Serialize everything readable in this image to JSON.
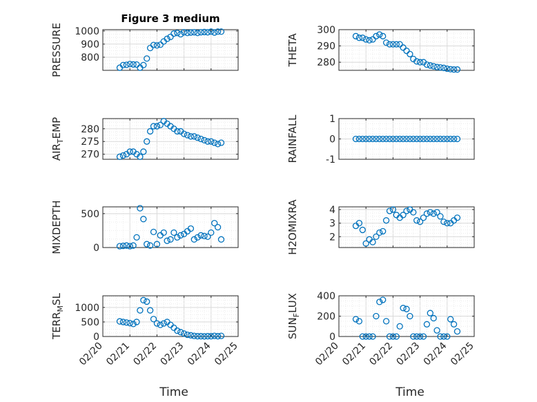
{
  "chart_data": [
    {
      "type": "scatter",
      "title": "Figure 3 medium",
      "ylabel": "PRESSURE",
      "ylim": [
        700,
        1010
      ],
      "yticks": [
        800,
        900,
        1000
      ],
      "xlim": [
        "02/20",
        "02/25"
      ],
      "grid": true,
      "x": [
        "02/20 15:00",
        "02/20 18:00",
        "02/20 21:00",
        "02/21 00:00",
        "02/21 03:00",
        "02/21 06:00",
        "02/21 09:00",
        "02/21 12:00",
        "02/21 15:00",
        "02/21 18:00",
        "02/21 21:00",
        "02/22 00:00",
        "02/22 03:00",
        "02/22 06:00",
        "02/22 09:00",
        "02/22 12:00",
        "02/22 15:00",
        "02/22 18:00",
        "02/22 21:00",
        "02/23 00:00",
        "02/23 03:00",
        "02/23 06:00",
        "02/23 09:00",
        "02/23 12:00",
        "02/23 15:00",
        "02/23 18:00",
        "02/23 21:00",
        "02/24 00:00",
        "02/24 03:00",
        "02/24 06:00",
        "02/24 09:00"
      ],
      "y": [
        720,
        740,
        742,
        748,
        745,
        744,
        720,
        740,
        790,
        870,
        893,
        890,
        895,
        920,
        940,
        955,
        980,
        985,
        975,
        990,
        985,
        988,
        990,
        985,
        990,
        992,
        990,
        995,
        988,
        995,
        995
      ]
    },
    {
      "type": "scatter",
      "ylabel": "THETA",
      "ylim": [
        275,
        300
      ],
      "yticks": [
        280,
        290,
        300
      ],
      "xlim": [
        "02/20",
        "02/25"
      ],
      "grid": true,
      "x": [
        "02/20 15:00",
        "02/20 18:00",
        "02/20 21:00",
        "02/21 00:00",
        "02/21 03:00",
        "02/21 06:00",
        "02/21 09:00",
        "02/21 12:00",
        "02/21 15:00",
        "02/21 18:00",
        "02/21 21:00",
        "02/22 00:00",
        "02/22 03:00",
        "02/22 06:00",
        "02/22 09:00",
        "02/22 12:00",
        "02/22 15:00",
        "02/22 18:00",
        "02/22 21:00",
        "02/23 00:00",
        "02/23 03:00",
        "02/23 06:00",
        "02/23 09:00",
        "02/23 12:00",
        "02/23 15:00",
        "02/23 18:00",
        "02/23 21:00",
        "02/24 00:00",
        "02/24 03:00",
        "02/24 06:00",
        "02/24 09:00"
      ],
      "y": [
        296,
        295,
        295,
        294,
        293.5,
        294,
        296,
        297,
        296,
        292,
        291,
        291,
        291,
        291,
        289,
        287,
        285,
        282,
        280.5,
        280,
        280,
        278.5,
        278,
        277.5,
        277,
        276.8,
        276.5,
        276,
        275.7,
        275.5,
        275.5
      ]
    },
    {
      "type": "scatter",
      "ylabel": "AIR_TEMP",
      "ylabel_main": "AIR",
      "ylabel_sub": "T",
      "ylabel_rest": "EMP",
      "ylim": [
        268,
        284
      ],
      "yticks": [
        270,
        275,
        280
      ],
      "xlim": [
        "02/20",
        "02/25"
      ],
      "grid": true,
      "x": [
        "02/20 15:00",
        "02/20 18:00",
        "02/20 21:00",
        "02/21 00:00",
        "02/21 03:00",
        "02/21 06:00",
        "02/21 09:00",
        "02/21 12:00",
        "02/21 15:00",
        "02/21 18:00",
        "02/21 21:00",
        "02/22 00:00",
        "02/22 03:00",
        "02/22 06:00",
        "02/22 09:00",
        "02/22 12:00",
        "02/22 15:00",
        "02/22 18:00",
        "02/22 21:00",
        "02/23 00:00",
        "02/23 03:00",
        "02/23 06:00",
        "02/23 09:00",
        "02/23 12:00",
        "02/23 15:00",
        "02/23 18:00",
        "02/23 21:00",
        "02/24 00:00",
        "02/24 03:00",
        "02/24 06:00",
        "02/24 09:00"
      ],
      "y": [
        269,
        269.5,
        270,
        271,
        271,
        270,
        269,
        271,
        275,
        279,
        281,
        281,
        281.5,
        283,
        282,
        281,
        280,
        279,
        279,
        278,
        277.5,
        277,
        277,
        276.5,
        276,
        275.5,
        275,
        275,
        274.5,
        274,
        274.5
      ]
    },
    {
      "type": "scatter",
      "ylabel": "RAINFALL",
      "ylim": [
        -1,
        1
      ],
      "yticks": [
        -1,
        0,
        1
      ],
      "xlim": [
        "02/20",
        "02/25"
      ],
      "grid": true,
      "x": [
        "02/20 15:00",
        "02/20 18:00",
        "02/20 21:00",
        "02/21 00:00",
        "02/21 03:00",
        "02/21 06:00",
        "02/21 09:00",
        "02/21 12:00",
        "02/21 15:00",
        "02/21 18:00",
        "02/21 21:00",
        "02/22 00:00",
        "02/22 03:00",
        "02/22 06:00",
        "02/22 09:00",
        "02/22 12:00",
        "02/22 15:00",
        "02/22 18:00",
        "02/22 21:00",
        "02/23 00:00",
        "02/23 03:00",
        "02/23 06:00",
        "02/23 09:00",
        "02/23 12:00",
        "02/23 15:00",
        "02/23 18:00",
        "02/23 21:00",
        "02/24 00:00",
        "02/24 03:00",
        "02/24 06:00",
        "02/24 09:00"
      ],
      "y": [
        0,
        0,
        0,
        0,
        0,
        0,
        0,
        0,
        0,
        0,
        0,
        0,
        0,
        0,
        0,
        0,
        0,
        0,
        0,
        0,
        0,
        0,
        0,
        0,
        0,
        0,
        0,
        0,
        0,
        0,
        0
      ]
    },
    {
      "type": "scatter",
      "ylabel": "MIXDEPTH",
      "ylim": [
        0,
        600
      ],
      "yticks": [
        0,
        500
      ],
      "xlim": [
        "02/20",
        "02/25"
      ],
      "grid": true,
      "x": [
        "02/20 15:00",
        "02/20 18:00",
        "02/20 21:00",
        "02/21 00:00",
        "02/21 03:00",
        "02/21 06:00",
        "02/21 09:00",
        "02/21 12:00",
        "02/21 15:00",
        "02/21 18:00",
        "02/21 21:00",
        "02/22 00:00",
        "02/22 03:00",
        "02/22 06:00",
        "02/22 09:00",
        "02/22 12:00",
        "02/22 15:00",
        "02/22 18:00",
        "02/22 21:00",
        "02/23 00:00",
        "02/23 03:00",
        "02/23 06:00",
        "02/23 09:00",
        "02/23 12:00",
        "02/23 15:00",
        "02/23 18:00",
        "02/23 21:00",
        "02/24 00:00",
        "02/24 03:00",
        "02/24 06:00",
        "02/24 09:00"
      ],
      "y": [
        20,
        25,
        30,
        20,
        30,
        150,
        580,
        420,
        50,
        30,
        230,
        50,
        180,
        220,
        100,
        120,
        220,
        150,
        180,
        200,
        240,
        280,
        120,
        150,
        180,
        170,
        160,
        220,
        360,
        300,
        120
      ]
    },
    {
      "type": "scatter",
      "ylabel": "H2OMIXRA",
      "ylim": [
        1.2,
        4.2
      ],
      "yticks": [
        2,
        3,
        4
      ],
      "xlim": [
        "02/20",
        "02/25"
      ],
      "grid": true,
      "x": [
        "02/20 15:00",
        "02/20 18:00",
        "02/20 21:00",
        "02/21 00:00",
        "02/21 03:00",
        "02/21 06:00",
        "02/21 09:00",
        "02/21 12:00",
        "02/21 15:00",
        "02/21 18:00",
        "02/21 21:00",
        "02/22 00:00",
        "02/22 03:00",
        "02/22 06:00",
        "02/22 09:00",
        "02/22 12:00",
        "02/22 15:00",
        "02/22 18:00",
        "02/22 21:00",
        "02/23 00:00",
        "02/23 03:00",
        "02/23 06:00",
        "02/23 09:00",
        "02/23 12:00",
        "02/23 15:00",
        "02/23 18:00",
        "02/23 21:00",
        "02/24 00:00",
        "02/24 03:00",
        "02/24 06:00",
        "02/24 09:00"
      ],
      "y": [
        2.8,
        3.0,
        2.5,
        1.5,
        1.8,
        1.6,
        2.0,
        2.3,
        2.4,
        3.2,
        3.9,
        4.0,
        3.6,
        3.4,
        3.6,
        3.9,
        4.0,
        3.8,
        3.2,
        3.1,
        3.4,
        3.7,
        3.8,
        3.7,
        3.8,
        3.5,
        3.1,
        3.0,
        3.0,
        3.2,
        3.4
      ]
    },
    {
      "type": "scatter",
      "ylabel": "TERR_MSL",
      "ylabel_main": "TERR",
      "ylabel_sub": "M",
      "ylabel_rest": "SL",
      "ylim": [
        0,
        1400
      ],
      "yticks": [
        0,
        500,
        1000
      ],
      "xlim": [
        "02/20",
        "02/25"
      ],
      "grid": true,
      "x": [
        "02/20 15:00",
        "02/20 18:00",
        "02/20 21:00",
        "02/21 00:00",
        "02/21 03:00",
        "02/21 06:00",
        "02/21 09:00",
        "02/21 12:00",
        "02/21 15:00",
        "02/21 18:00",
        "02/21 21:00",
        "02/22 00:00",
        "02/22 03:00",
        "02/22 06:00",
        "02/22 09:00",
        "02/22 12:00",
        "02/22 15:00",
        "02/22 18:00",
        "02/22 21:00",
        "02/23 00:00",
        "02/23 03:00",
        "02/23 06:00",
        "02/23 09:00",
        "02/23 12:00",
        "02/23 15:00",
        "02/23 18:00",
        "02/23 21:00",
        "02/24 00:00",
        "02/24 03:00",
        "02/24 06:00",
        "02/24 09:00"
      ],
      "y": [
        520,
        500,
        480,
        460,
        430,
        500,
        900,
        1250,
        1200,
        900,
        600,
        450,
        400,
        450,
        500,
        400,
        300,
        200,
        150,
        100,
        60,
        40,
        20,
        10,
        10,
        5,
        10,
        10,
        20,
        10,
        20
      ]
    },
    {
      "type": "scatter",
      "ylabel": "SUN_FLUX",
      "ylabel_main": "SUN",
      "ylabel_sub": "F",
      "ylabel_rest": "LUX",
      "ylim": [
        0,
        400
      ],
      "yticks": [
        0,
        200,
        400
      ],
      "xlim": [
        "02/20",
        "02/25"
      ],
      "grid": true,
      "x": [
        "02/20 15:00",
        "02/20 18:00",
        "02/20 21:00",
        "02/21 00:00",
        "02/21 03:00",
        "02/21 06:00",
        "02/21 09:00",
        "02/21 12:00",
        "02/21 15:00",
        "02/21 18:00",
        "02/21 21:00",
        "02/22 00:00",
        "02/22 03:00",
        "02/22 06:00",
        "02/22 09:00",
        "02/22 12:00",
        "02/22 15:00",
        "02/22 18:00",
        "02/22 21:00",
        "02/23 00:00",
        "02/23 03:00",
        "02/23 06:00",
        "02/23 09:00",
        "02/23 12:00",
        "02/23 15:00",
        "02/23 18:00",
        "02/23 21:00",
        "02/24 00:00",
        "02/24 03:00",
        "02/24 06:00",
        "02/24 09:00"
      ],
      "y": [
        170,
        150,
        0,
        0,
        0,
        0,
        200,
        340,
        360,
        150,
        0,
        0,
        0,
        100,
        280,
        270,
        200,
        0,
        0,
        0,
        0,
        120,
        230,
        180,
        60,
        0,
        0,
        0,
        170,
        120,
        50
      ]
    }
  ],
  "xticks": [
    "02/20",
    "02/21",
    "02/22",
    "02/23",
    "02/24",
    "02/25"
  ],
  "xlabel": "Time",
  "marker_color": "#0072BD"
}
